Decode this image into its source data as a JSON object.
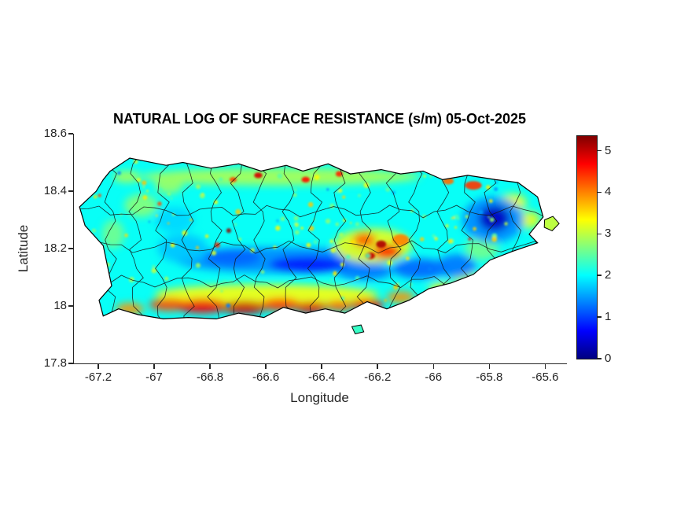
{
  "chart_data": {
    "type": "heatmap",
    "title": "NATURAL LOG OF SURFACE RESISTANCE (s/m) 05-Oct-2025",
    "xlabel": "Longitude",
    "ylabel": "Latitude",
    "region": "Puerto Rico municipalities",
    "xlim": [
      -67.29,
      -65.525
    ],
    "ylim": [
      17.8,
      18.6
    ],
    "xticks": [
      -67.2,
      -67,
      -66.8,
      -66.6,
      -66.4,
      -66.2,
      -66,
      -65.8,
      -65.6
    ],
    "xtick_labels": [
      "-67.2",
      "-67",
      "-66.8",
      "-66.6",
      "-66.4",
      "-66.2",
      "-66",
      "-65.8",
      "-65.6"
    ],
    "yticks": [
      17.8,
      18,
      18.2,
      18.4,
      18.6
    ],
    "ytick_labels": [
      "17.8",
      "18",
      "18.2",
      "18.4",
      "18.6"
    ],
    "grid": false,
    "colorbar": {
      "colormap": "jet",
      "vmin": 0,
      "vmax": 5.35,
      "ticks": [
        0,
        1,
        2,
        3,
        4,
        5
      ],
      "tick_labels": [
        "0",
        "1",
        "2",
        "3",
        "4",
        "5"
      ],
      "position": "right"
    },
    "axes_color": "#262626",
    "base_value": 2.05,
    "coastline": [
      [
        -67.16,
        18.47
      ],
      [
        -67.09,
        18.515
      ],
      [
        -66.96,
        18.49
      ],
      [
        -66.9,
        18.5
      ],
      [
        -66.8,
        18.48
      ],
      [
        -66.7,
        18.495
      ],
      [
        -66.62,
        18.47
      ],
      [
        -66.53,
        18.49
      ],
      [
        -66.47,
        18.47
      ],
      [
        -66.38,
        18.495
      ],
      [
        -66.3,
        18.46
      ],
      [
        -66.19,
        18.475
      ],
      [
        -66.12,
        18.46
      ],
      [
        -66.04,
        18.47
      ],
      [
        -65.97,
        18.44
      ],
      [
        -65.88,
        18.455
      ],
      [
        -65.78,
        18.44
      ],
      [
        -65.7,
        18.43
      ],
      [
        -65.63,
        18.38
      ],
      [
        -65.61,
        18.31
      ],
      [
        -65.66,
        18.25
      ],
      [
        -65.63,
        18.22
      ],
      [
        -65.72,
        18.19
      ],
      [
        -65.8,
        18.16
      ],
      [
        -65.86,
        18.11
      ],
      [
        -65.94,
        18.08
      ],
      [
        -66.02,
        18.06
      ],
      [
        -66.09,
        18.02
      ],
      [
        -66.17,
        17.99
      ],
      [
        -66.24,
        18.015
      ],
      [
        -66.32,
        17.975
      ],
      [
        -66.39,
        17.99
      ],
      [
        -66.46,
        17.975
      ],
      [
        -66.54,
        17.995
      ],
      [
        -66.61,
        17.96
      ],
      [
        -66.7,
        17.975
      ],
      [
        -66.78,
        17.955
      ],
      [
        -66.88,
        17.96
      ],
      [
        -66.97,
        17.955
      ],
      [
        -67.06,
        17.97
      ],
      [
        -67.13,
        17.99
      ],
      [
        -67.185,
        17.965
      ],
      [
        -67.2,
        18.02
      ],
      [
        -67.155,
        18.07
      ],
      [
        -67.17,
        18.14
      ],
      [
        -67.185,
        18.21
      ],
      [
        -67.25,
        18.28
      ],
      [
        -67.27,
        18.345
      ],
      [
        -67.21,
        18.4
      ],
      [
        -67.185,
        18.44
      ]
    ],
    "islets": [
      {
        "value": 3.0,
        "points": [
          [
            -65.605,
            18.3
          ],
          [
            -65.575,
            18.312
          ],
          [
            -65.553,
            18.287
          ],
          [
            -65.578,
            18.262
          ],
          [
            -65.606,
            18.274
          ]
        ]
      },
      {
        "value": 2.3,
        "points": [
          [
            -66.295,
            17.928
          ],
          [
            -66.262,
            17.934
          ],
          [
            -66.252,
            17.91
          ],
          [
            -66.283,
            17.903
          ]
        ]
      }
    ],
    "features": [
      {
        "lon": -66.55,
        "lat": 18.45,
        "rx": 0.5,
        "ry": 0.03,
        "v": 2.9
      },
      {
        "lon": -66.6,
        "lat": 18.04,
        "rx": 0.4,
        "ry": 0.035,
        "v": 3.3
      },
      {
        "lon": -66.55,
        "lat": 18.16,
        "rx": 0.38,
        "ry": 0.045,
        "v": 1.4
      },
      {
        "lon": -66.22,
        "lat": 18.21,
        "rx": 0.14,
        "ry": 0.06,
        "v": 3.2
      },
      {
        "lon": -66.93,
        "lat": 18.3,
        "rx": 0.07,
        "ry": 0.045,
        "v": 1.8
      },
      {
        "lon": -66.9,
        "lat": 18.2,
        "rx": 0.09,
        "ry": 0.05,
        "v": 1.7
      },
      {
        "lon": -67.05,
        "lat": 18.35,
        "rx": 0.06,
        "ry": 0.04,
        "v": 2.7
      },
      {
        "lon": -67.15,
        "lat": 18.25,
        "rx": 0.04,
        "ry": 0.05,
        "v": 2.6
      },
      {
        "lon": -66.95,
        "lat": 18.42,
        "rx": 0.05,
        "ry": 0.03,
        "v": 2.8
      },
      {
        "lon": -67.1,
        "lat": 18.45,
        "rx": 0.05,
        "ry": 0.02,
        "v": 2.9
      },
      {
        "lon": -65.83,
        "lat": 18.2,
        "rx": 0.06,
        "ry": 0.04,
        "v": 2.6
      },
      {
        "lon": -65.88,
        "lat": 18.09,
        "rx": 0.05,
        "ry": 0.03,
        "v": 2.9
      },
      {
        "lon": -65.66,
        "lat": 18.3,
        "rx": 0.04,
        "ry": 0.03,
        "v": 3.2
      },
      {
        "lon": -65.72,
        "lat": 18.36,
        "rx": 0.05,
        "ry": 0.03,
        "v": 3.3
      },
      {
        "lon": -66.72,
        "lat": 18.17,
        "rx": 0.1,
        "ry": 0.03,
        "v": 1.2
      },
      {
        "lon": -66.45,
        "lat": 18.145,
        "rx": 0.14,
        "ry": 0.028,
        "v": 0.8
      },
      {
        "lon": -66.25,
        "lat": 18.12,
        "rx": 0.1,
        "ry": 0.03,
        "v": 1.3
      },
      {
        "lon": -66.05,
        "lat": 18.13,
        "rx": 0.1,
        "ry": 0.035,
        "v": 1.2
      },
      {
        "lon": -65.92,
        "lat": 18.14,
        "rx": 0.07,
        "ry": 0.04,
        "v": 1.3
      },
      {
        "lon": -65.79,
        "lat": 18.3,
        "rx": 0.11,
        "ry": 0.08,
        "v": 1.4
      },
      {
        "lon": -66.95,
        "lat": 18.005,
        "rx": 0.07,
        "ry": 0.022,
        "v": 4.3
      },
      {
        "lon": -66.83,
        "lat": 18.0,
        "rx": 0.09,
        "ry": 0.025,
        "v": 4.7
      },
      {
        "lon": -66.68,
        "lat": 17.995,
        "rx": 0.08,
        "ry": 0.022,
        "v": 4.9
      },
      {
        "lon": -66.55,
        "lat": 18.005,
        "rx": 0.07,
        "ry": 0.022,
        "v": 4.4
      },
      {
        "lon": -66.44,
        "lat": 17.995,
        "rx": 0.06,
        "ry": 0.02,
        "v": 4.8
      },
      {
        "lon": -66.34,
        "lat": 18.0,
        "rx": 0.05,
        "ry": 0.018,
        "v": 4.2
      },
      {
        "lon": -66.24,
        "lat": 18.005,
        "rx": 0.06,
        "ry": 0.02,
        "v": 4.7
      },
      {
        "lon": -66.12,
        "lat": 18.03,
        "rx": 0.05,
        "ry": 0.02,
        "v": 3.9
      },
      {
        "lon": -67.09,
        "lat": 17.99,
        "rx": 0.05,
        "ry": 0.02,
        "v": 3.9
      },
      {
        "lon": -65.97,
        "lat": 18.06,
        "rx": 0.05,
        "ry": 0.02,
        "v": 3.4
      },
      {
        "lon": -66.25,
        "lat": 18.23,
        "rx": 0.04,
        "ry": 0.025,
        "v": 4.2
      },
      {
        "lon": -66.17,
        "lat": 18.19,
        "rx": 0.05,
        "ry": 0.025,
        "v": 4.6
      },
      {
        "lon": -66.12,
        "lat": 18.23,
        "rx": 0.03,
        "ry": 0.02,
        "v": 4.0
      },
      {
        "lon": -65.86,
        "lat": 18.42,
        "rx": 0.03,
        "ry": 0.015,
        "v": 4.4
      },
      {
        "lon": -65.95,
        "lat": 18.435,
        "rx": 0.02,
        "ry": 0.012,
        "v": 4.1
      },
      {
        "lon": -65.785,
        "lat": 18.305,
        "rx": 0.055,
        "ry": 0.045,
        "v": 0.35
      },
      {
        "lon": -66.19,
        "lat": 18.215,
        "rx": 0.018,
        "ry": 0.013,
        "v": 5.1
      },
      {
        "lon": -66.23,
        "lat": 18.175,
        "rx": 0.018,
        "ry": 0.012,
        "v": 5.0
      },
      {
        "lon": -66.63,
        "lat": 18.455,
        "rx": 0.015,
        "ry": 0.01,
        "v": 4.9
      },
      {
        "lon": -66.46,
        "lat": 18.44,
        "rx": 0.015,
        "ry": 0.01,
        "v": 4.6
      },
      {
        "lon": -66.34,
        "lat": 18.46,
        "rx": 0.013,
        "ry": 0.01,
        "v": 4.5
      },
      {
        "lon": -66.72,
        "lat": 18.44,
        "rx": 0.013,
        "ry": 0.009,
        "v": 4.3
      }
    ],
    "speckles": {
      "count": 150,
      "seed": 7
    },
    "boundaries": {
      "vertical_count": 17,
      "lon_start": -67.16,
      "lon_end": -65.7,
      "horizontal_lats": [
        18.085,
        18.205,
        18.33
      ],
      "color": "#141414",
      "seed": 11
    }
  }
}
